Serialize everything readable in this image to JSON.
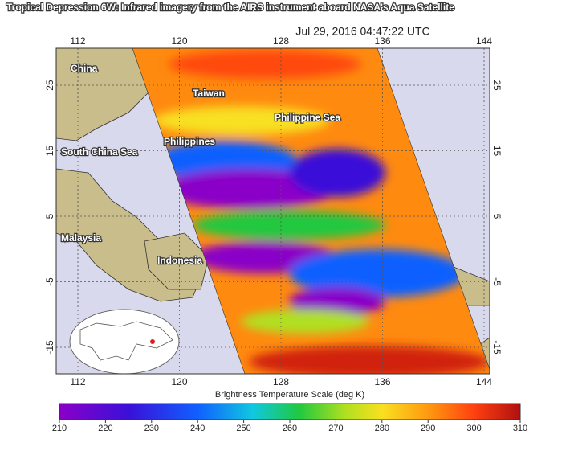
{
  "title": "Tropical Depression 6W: Infrared imagery from the AIRS instrument aboard NASA's Aqua Satellite",
  "timestamp": "Jul 29, 2016 04:47:22 UTC",
  "map": {
    "lon_labels": [
      112,
      120,
      128,
      136,
      144
    ],
    "lat_labels": [
      25,
      15,
      5,
      -5,
      -15
    ],
    "places": [
      "China",
      "Taiwan",
      "Philippine Sea",
      "Philippines",
      "South China Sea",
      "Malaysia",
      "Indonesia"
    ]
  },
  "colorbar": {
    "label": "Brightness Temperature Scale (deg K)",
    "range": [
      210,
      310
    ],
    "ticks": [
      210,
      220,
      230,
      240,
      250,
      260,
      270,
      280,
      290,
      300,
      310
    ]
  }
}
